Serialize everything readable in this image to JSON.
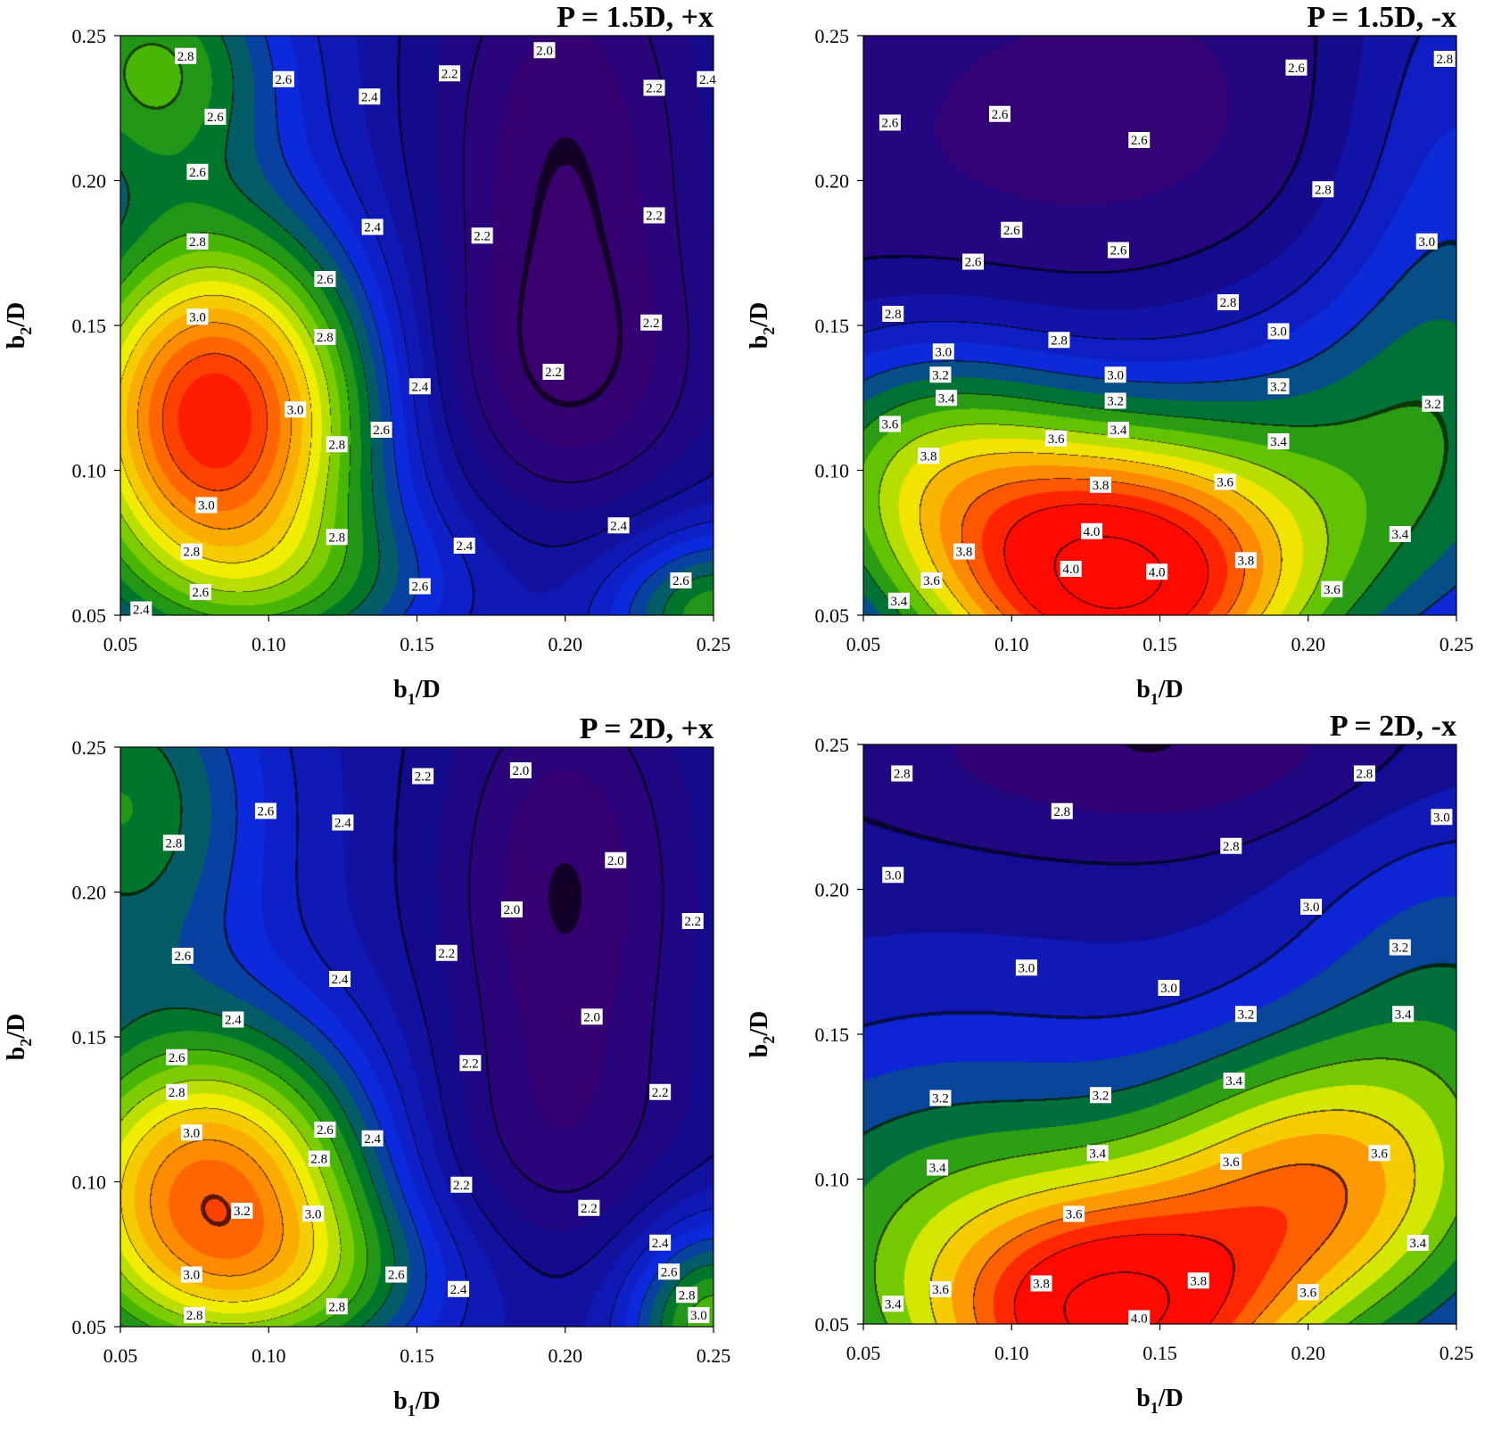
{
  "chart_data": [
    {
      "type": "contour",
      "title": "P = 1.5D, +x",
      "xlabel_main": "b",
      "xlabel_sub": "1",
      "xlabel_tail": "/D",
      "ylabel_main": "b",
      "ylabel_sub": "2",
      "ylabel_tail": "/D",
      "xlim": [
        0.05,
        0.25
      ],
      "ylim": [
        0.05,
        0.25
      ],
      "xticks": [
        "0.05",
        "0.10",
        "0.15",
        "0.20",
        "0.25"
      ],
      "yticks": [
        "0.05",
        "0.10",
        "0.15",
        "0.20",
        "0.25"
      ],
      "zrange": [
        1.9,
        4.1
      ],
      "base": 2.4,
      "blobs": [
        {
          "x": 0.082,
          "y": 0.118,
          "sx": 0.036,
          "sy": 0.045,
          "a": 1.7
        },
        {
          "x": 0.06,
          "y": 0.24,
          "sx": 0.03,
          "sy": 0.03,
          "a": 0.7
        },
        {
          "x": 0.25,
          "y": 0.05,
          "sx": 0.025,
          "sy": 0.02,
          "a": 0.7
        },
        {
          "x": 0.12,
          "y": 0.06,
          "sx": 0.04,
          "sy": 0.02,
          "a": 0.3
        },
        {
          "x": 0.2,
          "y": 0.2,
          "sx": 0.035,
          "sy": 0.08,
          "a": -0.5
        },
        {
          "x": 0.2,
          "y": 0.13,
          "sx": 0.04,
          "sy": 0.03,
          "a": -0.2
        }
      ],
      "labels": [
        {
          "x": 0.072,
          "y": 0.243,
          "t": "2.8"
        },
        {
          "x": 0.105,
          "y": 0.235,
          "t": "2.6"
        },
        {
          "x": 0.082,
          "y": 0.222,
          "t": "2.6"
        },
        {
          "x": 0.076,
          "y": 0.203,
          "t": "2.6"
        },
        {
          "x": 0.134,
          "y": 0.229,
          "t": "2.4"
        },
        {
          "x": 0.161,
          "y": 0.237,
          "t": "2.2"
        },
        {
          "x": 0.193,
          "y": 0.245,
          "t": "2.0"
        },
        {
          "x": 0.23,
          "y": 0.232,
          "t": "2.2"
        },
        {
          "x": 0.248,
          "y": 0.235,
          "t": "2.4"
        },
        {
          "x": 0.135,
          "y": 0.184,
          "t": "2.4"
        },
        {
          "x": 0.172,
          "y": 0.181,
          "t": "2.2"
        },
        {
          "x": 0.23,
          "y": 0.188,
          "t": "2.2"
        },
        {
          "x": 0.076,
          "y": 0.179,
          "t": "2.8"
        },
        {
          "x": 0.119,
          "y": 0.166,
          "t": "2.6"
        },
        {
          "x": 0.076,
          "y": 0.153,
          "t": "3.0"
        },
        {
          "x": 0.119,
          "y": 0.146,
          "t": "2.8"
        },
        {
          "x": 0.229,
          "y": 0.151,
          "t": "2.2"
        },
        {
          "x": 0.196,
          "y": 0.134,
          "t": "2.2"
        },
        {
          "x": 0.151,
          "y": 0.129,
          "t": "2.4"
        },
        {
          "x": 0.109,
          "y": 0.121,
          "t": "3.0"
        },
        {
          "x": 0.138,
          "y": 0.114,
          "t": "2.6"
        },
        {
          "x": 0.123,
          "y": 0.109,
          "t": "2.8"
        },
        {
          "x": 0.079,
          "y": 0.088,
          "t": "3.0"
        },
        {
          "x": 0.123,
          "y": 0.077,
          "t": "2.8"
        },
        {
          "x": 0.074,
          "y": 0.072,
          "t": "2.8"
        },
        {
          "x": 0.166,
          "y": 0.074,
          "t": "2.4"
        },
        {
          "x": 0.218,
          "y": 0.081,
          "t": "2.4"
        },
        {
          "x": 0.077,
          "y": 0.058,
          "t": "2.6"
        },
        {
          "x": 0.151,
          "y": 0.06,
          "t": "2.6"
        },
        {
          "x": 0.239,
          "y": 0.062,
          "t": "2.6"
        },
        {
          "x": 0.057,
          "y": 0.052,
          "t": "2.4"
        }
      ]
    },
    {
      "type": "contour",
      "title": "P = 1.5D, -x",
      "xlabel_main": "b",
      "xlabel_sub": "1",
      "xlabel_tail": "/D",
      "ylabel_main": "b",
      "ylabel_sub": "2",
      "ylabel_tail": "/D",
      "xlim": [
        0.05,
        0.25
      ],
      "ylim": [
        0.05,
        0.25
      ],
      "xticks": [
        "0.05",
        "0.10",
        "0.15",
        "0.20",
        "0.25"
      ],
      "yticks": [
        "0.05",
        "0.10",
        "0.15",
        "0.20",
        "0.25"
      ],
      "zrange": [
        2.5,
        4.1
      ],
      "base": 2.65,
      "blobs": [
        {
          "x": 0.135,
          "y": 0.06,
          "sx": 0.045,
          "sy": 0.035,
          "a": 1.5
        },
        {
          "x": 0.07,
          "y": 0.1,
          "sx": 0.04,
          "sy": 0.035,
          "a": 0.7
        },
        {
          "x": 0.22,
          "y": 0.1,
          "sx": 0.06,
          "sy": 0.05,
          "a": 0.5
        },
        {
          "x": 0.25,
          "y": 0.2,
          "sx": 0.03,
          "sy": 0.08,
          "a": 0.35
        },
        {
          "x": 0.14,
          "y": 0.21,
          "sx": 0.06,
          "sy": 0.04,
          "a": -0.1
        }
      ],
      "labels": [
        {
          "x": 0.059,
          "y": 0.22,
          "t": "2.6"
        },
        {
          "x": 0.096,
          "y": 0.223,
          "t": "2.6"
        },
        {
          "x": 0.143,
          "y": 0.214,
          "t": "2.6"
        },
        {
          "x": 0.196,
          "y": 0.239,
          "t": "2.6"
        },
        {
          "x": 0.246,
          "y": 0.242,
          "t": "2.8"
        },
        {
          "x": 0.205,
          "y": 0.197,
          "t": "2.8"
        },
        {
          "x": 0.1,
          "y": 0.183,
          "t": "2.6"
        },
        {
          "x": 0.136,
          "y": 0.176,
          "t": "2.6"
        },
        {
          "x": 0.087,
          "y": 0.172,
          "t": "2.6"
        },
        {
          "x": 0.24,
          "y": 0.179,
          "t": "3.0"
        },
        {
          "x": 0.06,
          "y": 0.154,
          "t": "2.8"
        },
        {
          "x": 0.173,
          "y": 0.158,
          "t": "2.8"
        },
        {
          "x": 0.077,
          "y": 0.141,
          "t": "3.0"
        },
        {
          "x": 0.116,
          "y": 0.145,
          "t": "2.8"
        },
        {
          "x": 0.19,
          "y": 0.148,
          "t": "3.0"
        },
        {
          "x": 0.076,
          "y": 0.133,
          "t": "3.2"
        },
        {
          "x": 0.135,
          "y": 0.133,
          "t": "3.0"
        },
        {
          "x": 0.078,
          "y": 0.125,
          "t": "3.4"
        },
        {
          "x": 0.19,
          "y": 0.129,
          "t": "3.2"
        },
        {
          "x": 0.135,
          "y": 0.124,
          "t": "3.2"
        },
        {
          "x": 0.242,
          "y": 0.123,
          "t": "3.2"
        },
        {
          "x": 0.059,
          "y": 0.116,
          "t": "3.6"
        },
        {
          "x": 0.136,
          "y": 0.114,
          "t": "3.4"
        },
        {
          "x": 0.115,
          "y": 0.111,
          "t": "3.6"
        },
        {
          "x": 0.19,
          "y": 0.11,
          "t": "3.4"
        },
        {
          "x": 0.072,
          "y": 0.105,
          "t": "3.8"
        },
        {
          "x": 0.13,
          "y": 0.095,
          "t": "3.8"
        },
        {
          "x": 0.172,
          "y": 0.096,
          "t": "3.6"
        },
        {
          "x": 0.127,
          "y": 0.079,
          "t": "4.0"
        },
        {
          "x": 0.084,
          "y": 0.072,
          "t": "3.8"
        },
        {
          "x": 0.231,
          "y": 0.078,
          "t": "3.4"
        },
        {
          "x": 0.12,
          "y": 0.066,
          "t": "4.0"
        },
        {
          "x": 0.149,
          "y": 0.065,
          "t": "4.0"
        },
        {
          "x": 0.179,
          "y": 0.069,
          "t": "3.8"
        },
        {
          "x": 0.073,
          "y": 0.062,
          "t": "3.6"
        },
        {
          "x": 0.208,
          "y": 0.059,
          "t": "3.6"
        },
        {
          "x": 0.062,
          "y": 0.055,
          "t": "3.4"
        }
      ]
    },
    {
      "type": "contour",
      "title": "P = 2D, +x",
      "xlabel_main": "b",
      "xlabel_sub": "1",
      "xlabel_tail": "/D",
      "ylabel_main": "b",
      "ylabel_sub": "2",
      "ylabel_tail": "/D",
      "xlim": [
        0.05,
        0.25
      ],
      "ylim": [
        0.05,
        0.25
      ],
      "xticks": [
        "0.05",
        "0.10",
        "0.15",
        "0.20",
        "0.25"
      ],
      "yticks": [
        "0.05",
        "0.10",
        "0.15",
        "0.20",
        "0.25"
      ],
      "zrange": [
        1.9,
        4.1
      ],
      "base": 2.35,
      "blobs": [
        {
          "x": 0.08,
          "y": 0.095,
          "sx": 0.04,
          "sy": 0.04,
          "a": 1.5
        },
        {
          "x": 0.05,
          "y": 0.23,
          "sx": 0.035,
          "sy": 0.045,
          "a": 0.65
        },
        {
          "x": 0.25,
          "y": 0.05,
          "sx": 0.02,
          "sy": 0.025,
          "a": 0.85
        },
        {
          "x": 0.12,
          "y": 0.065,
          "sx": 0.035,
          "sy": 0.02,
          "a": 0.3
        },
        {
          "x": 0.2,
          "y": 0.2,
          "sx": 0.03,
          "sy": 0.06,
          "a": -0.45
        },
        {
          "x": 0.19,
          "y": 0.11,
          "sx": 0.04,
          "sy": 0.03,
          "a": -0.2
        }
      ],
      "labels": [
        {
          "x": 0.152,
          "y": 0.24,
          "t": "2.2"
        },
        {
          "x": 0.185,
          "y": 0.242,
          "t": "2.0"
        },
        {
          "x": 0.099,
          "y": 0.228,
          "t": "2.6"
        },
        {
          "x": 0.125,
          "y": 0.224,
          "t": "2.4"
        },
        {
          "x": 0.068,
          "y": 0.217,
          "t": "2.8"
        },
        {
          "x": 0.217,
          "y": 0.211,
          "t": "2.0"
        },
        {
          "x": 0.182,
          "y": 0.194,
          "t": "2.0"
        },
        {
          "x": 0.243,
          "y": 0.19,
          "t": "2.2"
        },
        {
          "x": 0.071,
          "y": 0.178,
          "t": "2.6"
        },
        {
          "x": 0.16,
          "y": 0.179,
          "t": "2.2"
        },
        {
          "x": 0.124,
          "y": 0.17,
          "t": "2.4"
        },
        {
          "x": 0.209,
          "y": 0.157,
          "t": "2.0"
        },
        {
          "x": 0.088,
          "y": 0.156,
          "t": "2.4"
        },
        {
          "x": 0.069,
          "y": 0.143,
          "t": "2.6"
        },
        {
          "x": 0.168,
          "y": 0.141,
          "t": "2.2"
        },
        {
          "x": 0.069,
          "y": 0.131,
          "t": "2.8"
        },
        {
          "x": 0.232,
          "y": 0.131,
          "t": "2.2"
        },
        {
          "x": 0.074,
          "y": 0.117,
          "t": "3.0"
        },
        {
          "x": 0.119,
          "y": 0.118,
          "t": "2.6"
        },
        {
          "x": 0.135,
          "y": 0.115,
          "t": "2.4"
        },
        {
          "x": 0.117,
          "y": 0.108,
          "t": "2.8"
        },
        {
          "x": 0.165,
          "y": 0.099,
          "t": "2.2"
        },
        {
          "x": 0.091,
          "y": 0.09,
          "t": "3.2"
        },
        {
          "x": 0.115,
          "y": 0.089,
          "t": "3.0"
        },
        {
          "x": 0.208,
          "y": 0.091,
          "t": "2.2"
        },
        {
          "x": 0.232,
          "y": 0.079,
          "t": "2.4"
        },
        {
          "x": 0.074,
          "y": 0.068,
          "t": "3.0"
        },
        {
          "x": 0.143,
          "y": 0.068,
          "t": "2.6"
        },
        {
          "x": 0.235,
          "y": 0.069,
          "t": "2.6"
        },
        {
          "x": 0.164,
          "y": 0.063,
          "t": "2.4"
        },
        {
          "x": 0.241,
          "y": 0.061,
          "t": "2.8"
        },
        {
          "x": 0.075,
          "y": 0.054,
          "t": "2.8"
        },
        {
          "x": 0.123,
          "y": 0.057,
          "t": "2.8"
        },
        {
          "x": 0.245,
          "y": 0.054,
          "t": "3.0"
        }
      ]
    },
    {
      "type": "contour",
      "title": "P = 2D, -x",
      "xlabel_main": "b",
      "xlabel_sub": "1",
      "xlabel_tail": "/D",
      "ylabel_main": "b",
      "ylabel_sub": "2",
      "ylabel_tail": "/D",
      "xlim": [
        0.05,
        0.25
      ],
      "ylim": [
        0.05,
        0.25
      ],
      "xticks": [
        "0.05",
        "0.10",
        "0.15",
        "0.20",
        "0.25"
      ],
      "yticks": [
        "0.05",
        "0.10",
        "0.15",
        "0.20",
        "0.25"
      ],
      "zrange": [
        2.7,
        4.1
      ],
      "base": 2.95,
      "blobs": [
        {
          "x": 0.135,
          "y": 0.05,
          "sx": 0.04,
          "sy": 0.03,
          "a": 1.05
        },
        {
          "x": 0.2,
          "y": 0.095,
          "sx": 0.04,
          "sy": 0.035,
          "a": 0.75
        },
        {
          "x": 0.08,
          "y": 0.08,
          "sx": 0.06,
          "sy": 0.05,
          "a": 0.5
        },
        {
          "x": 0.25,
          "y": 0.15,
          "sx": 0.04,
          "sy": 0.06,
          "a": 0.35
        },
        {
          "x": 0.15,
          "y": 0.25,
          "sx": 0.07,
          "sy": 0.025,
          "a": -0.25
        }
      ],
      "labels": [
        {
          "x": 0.063,
          "y": 0.24,
          "t": "2.8"
        },
        {
          "x": 0.219,
          "y": 0.24,
          "t": "2.8"
        },
        {
          "x": 0.117,
          "y": 0.227,
          "t": "2.8"
        },
        {
          "x": 0.245,
          "y": 0.225,
          "t": "3.0"
        },
        {
          "x": 0.174,
          "y": 0.215,
          "t": "2.8"
        },
        {
          "x": 0.06,
          "y": 0.205,
          "t": "3.0"
        },
        {
          "x": 0.201,
          "y": 0.194,
          "t": "3.0"
        },
        {
          "x": 0.231,
          "y": 0.18,
          "t": "3.2"
        },
        {
          "x": 0.105,
          "y": 0.173,
          "t": "3.0"
        },
        {
          "x": 0.153,
          "y": 0.166,
          "t": "3.0"
        },
        {
          "x": 0.179,
          "y": 0.157,
          "t": "3.2"
        },
        {
          "x": 0.232,
          "y": 0.157,
          "t": "3.4"
        },
        {
          "x": 0.175,
          "y": 0.134,
          "t": "3.4"
        },
        {
          "x": 0.076,
          "y": 0.128,
          "t": "3.2"
        },
        {
          "x": 0.13,
          "y": 0.129,
          "t": "3.2"
        },
        {
          "x": 0.129,
          "y": 0.109,
          "t": "3.4"
        },
        {
          "x": 0.075,
          "y": 0.104,
          "t": "3.4"
        },
        {
          "x": 0.224,
          "y": 0.109,
          "t": "3.6"
        },
        {
          "x": 0.174,
          "y": 0.106,
          "t": "3.6"
        },
        {
          "x": 0.121,
          "y": 0.088,
          "t": "3.6"
        },
        {
          "x": 0.237,
          "y": 0.078,
          "t": "3.4"
        },
        {
          "x": 0.06,
          "y": 0.057,
          "t": "3.4"
        },
        {
          "x": 0.076,
          "y": 0.062,
          "t": "3.6"
        },
        {
          "x": 0.11,
          "y": 0.064,
          "t": "3.8"
        },
        {
          "x": 0.163,
          "y": 0.065,
          "t": "3.8"
        },
        {
          "x": 0.2,
          "y": 0.061,
          "t": "3.6"
        },
        {
          "x": 0.143,
          "y": 0.052,
          "t": "4.0"
        }
      ]
    }
  ]
}
